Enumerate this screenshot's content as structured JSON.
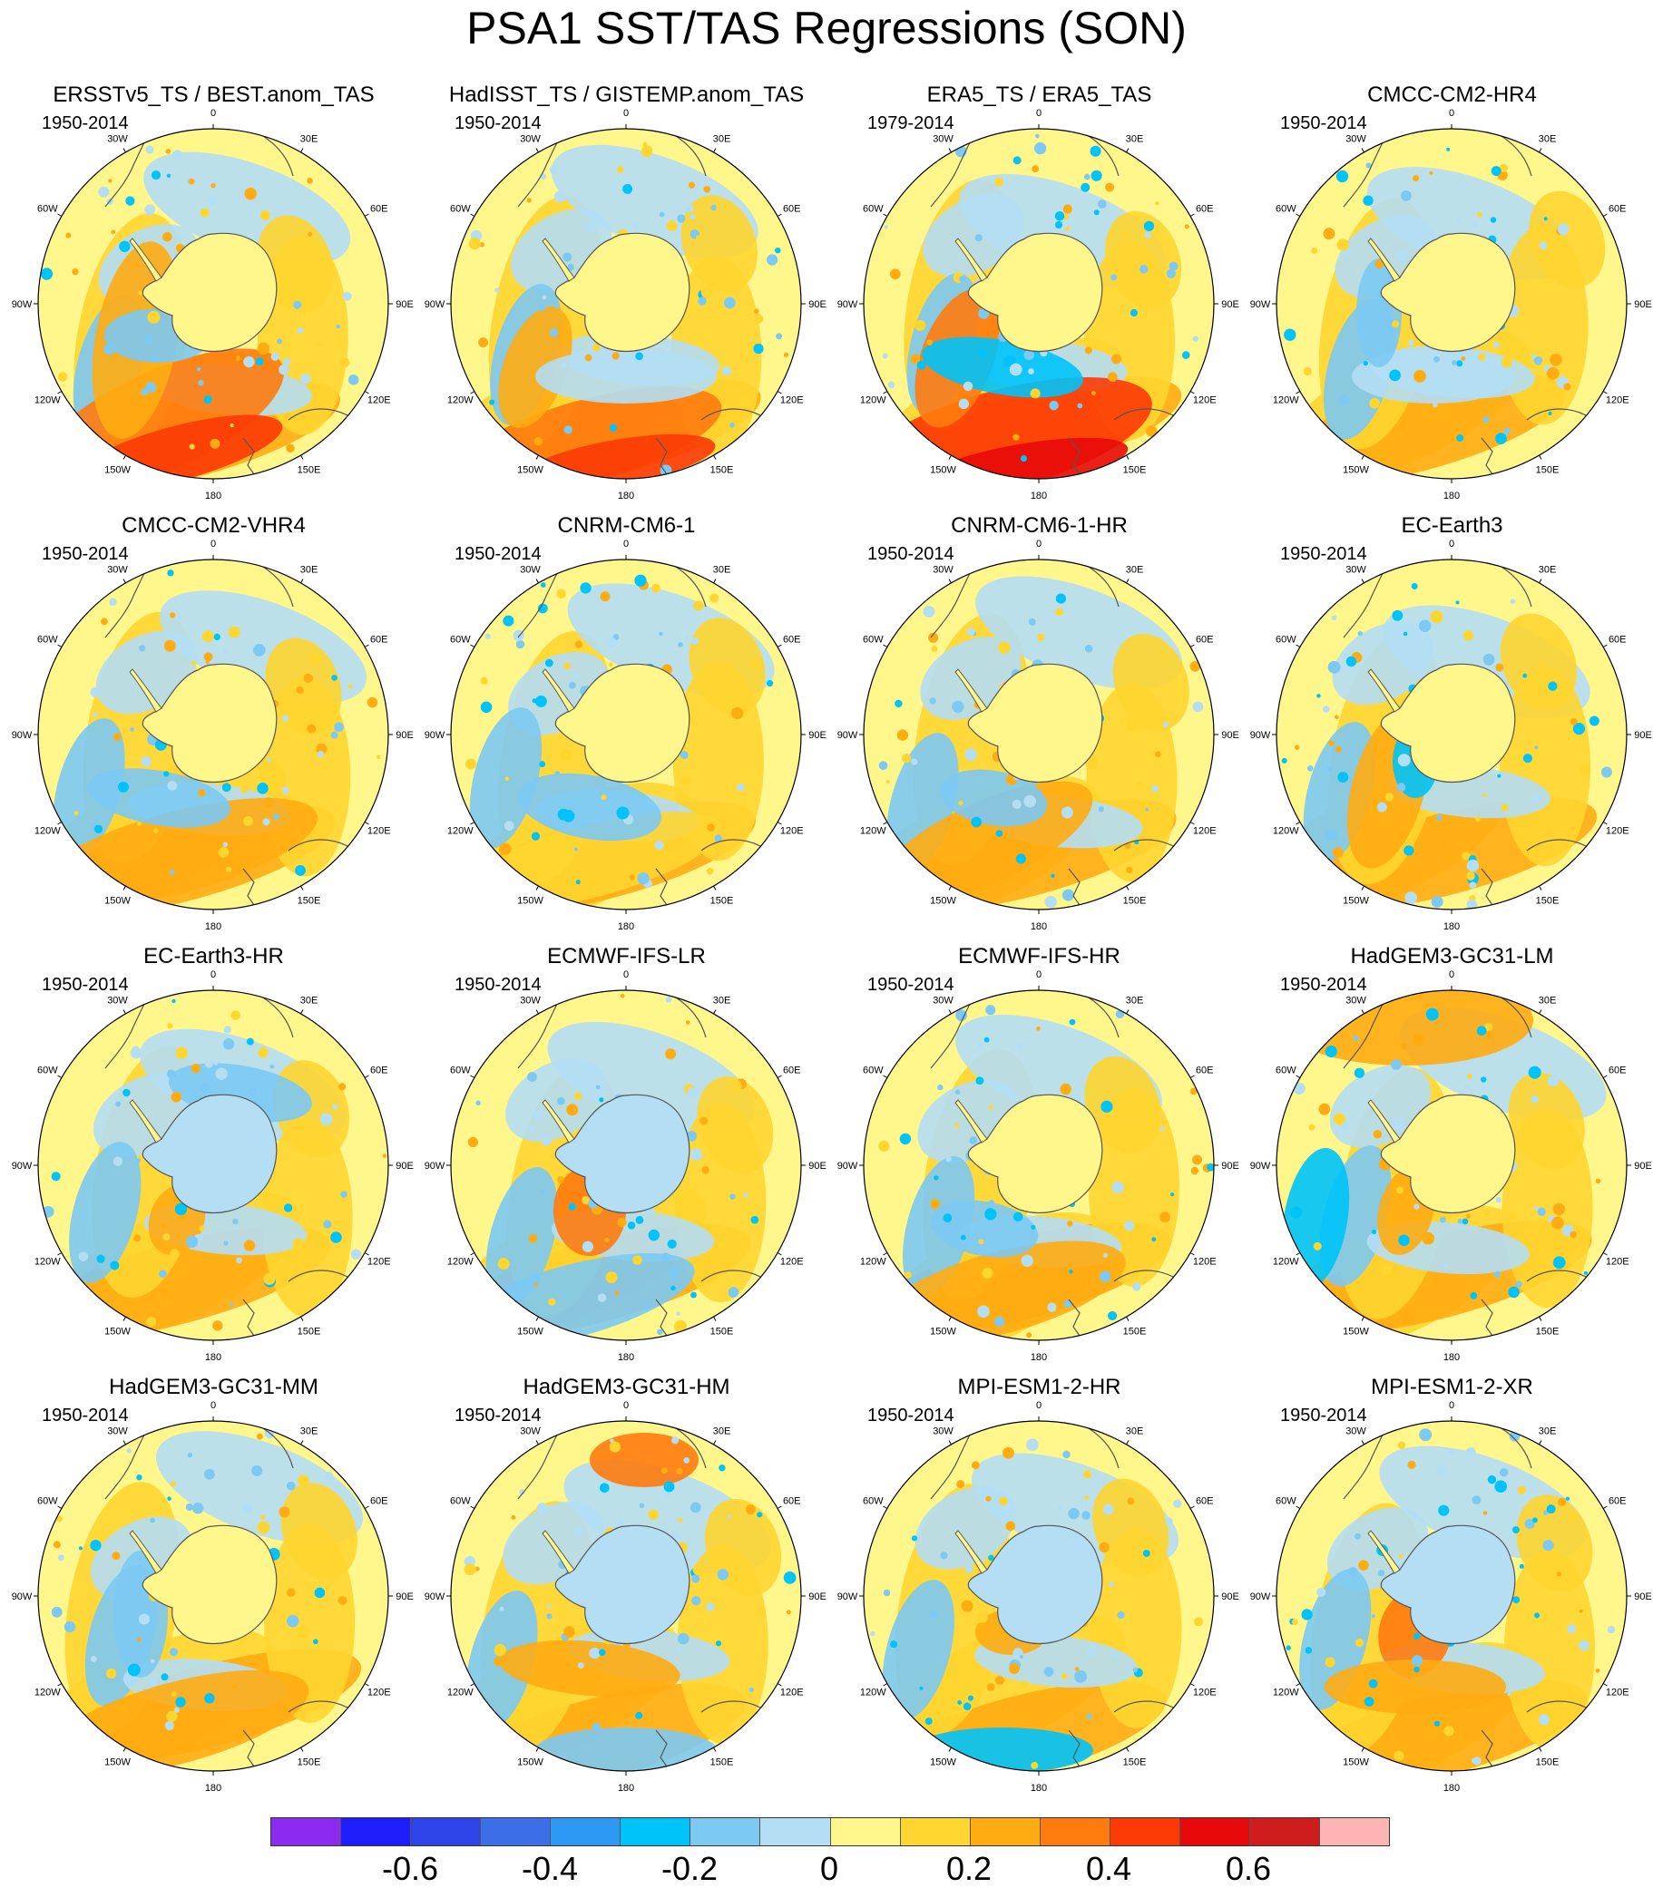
{
  "title": "PSA1 SST/TAS Regressions (SON)",
  "longitude_labels": [
    "0",
    "30E",
    "60E",
    "90E",
    "120E",
    "150E",
    "180",
    "150W",
    "120W",
    "90W",
    "60W",
    "30W"
  ],
  "panels": [
    {
      "title": "ERSSTv5_TS / BEST.anom_TAS",
      "period": "1950-2014"
    },
    {
      "title": "HadISST_TS / GISTEMP.anom_TAS",
      "period": "1950-2014"
    },
    {
      "title": "ERA5_TS / ERA5_TAS",
      "period": "1979-2014"
    },
    {
      "title": "CMCC-CM2-HR4",
      "period": "1950-2014"
    },
    {
      "title": "CMCC-CM2-VHR4",
      "period": "1950-2014"
    },
    {
      "title": "CNRM-CM6-1",
      "period": "1950-2014"
    },
    {
      "title": "CNRM-CM6-1-HR",
      "period": "1950-2014"
    },
    {
      "title": "EC-Earth3",
      "period": "1950-2014"
    },
    {
      "title": "EC-Earth3-HR",
      "period": "1950-2014"
    },
    {
      "title": "ECMWF-IFS-LR",
      "period": "1950-2014"
    },
    {
      "title": "ECMWF-IFS-HR",
      "period": "1950-2014"
    },
    {
      "title": "HadGEM3-GC31-LM",
      "period": "1950-2014"
    },
    {
      "title": "HadGEM3-GC31-MM",
      "period": "1950-2014"
    },
    {
      "title": "HadGEM3-GC31-HM",
      "period": "1950-2014"
    },
    {
      "title": "MPI-ESM1-2-HR",
      "period": "1950-2014"
    },
    {
      "title": "MPI-ESM1-2-XR",
      "period": "1950-2014"
    }
  ],
  "colorbar": {
    "colors": [
      "#8c2af0",
      "#1e1efa",
      "#2f44e8",
      "#3c6ee8",
      "#2e98f5",
      "#00c3fa",
      "#7cc9f3",
      "#b4def4",
      "#fff68c",
      "#ffd530",
      "#ffac12",
      "#ff7b0e",
      "#fc3a06",
      "#e80a0a",
      "#cf1c1c",
      "#ffb4b4"
    ],
    "ticks": [
      {
        "label": "-0.6",
        "index": 2
      },
      {
        "label": "-0.4",
        "index": 4
      },
      {
        "label": "-0.2",
        "index": 6
      },
      {
        "label": "0",
        "index": 8
      },
      {
        "label": "0.2",
        "index": 10
      },
      {
        "label": "0.4",
        "index": 12
      },
      {
        "label": "0.6",
        "index": 14
      }
    ]
  }
}
